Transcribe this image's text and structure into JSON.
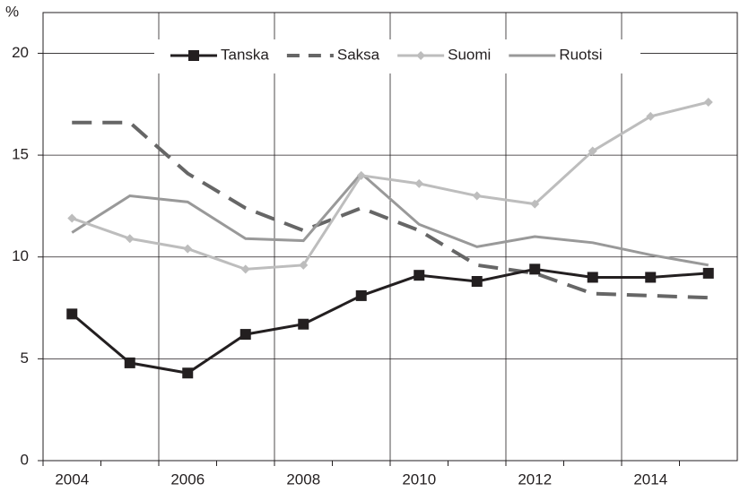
{
  "chart_data": {
    "type": "line",
    "y_axis_label": "%",
    "categories": [
      "2004",
      null,
      "2006",
      null,
      "2008",
      null,
      "2010",
      null,
      "2012",
      null,
      "2014",
      null
    ],
    "ylim": [
      0,
      22
    ],
    "yticks": [
      0,
      5,
      10,
      15,
      20
    ],
    "grid": true,
    "legend": "top",
    "series": [
      {
        "name": "Tanska",
        "color": "#231f20",
        "marker": "square",
        "dash": false,
        "values": [
          7.2,
          4.8,
          4.3,
          6.2,
          6.7,
          8.1,
          9.1,
          8.8,
          9.4,
          9.0,
          9.0,
          9.2
        ]
      },
      {
        "name": "Saksa",
        "color": "#666666",
        "marker": "none",
        "dash": true,
        "values": [
          16.6,
          16.6,
          14.1,
          12.4,
          11.3,
          12.4,
          11.3,
          9.6,
          9.2,
          8.2,
          8.1,
          8.0
        ]
      },
      {
        "name": "Suomi",
        "color": "#bdbdbd",
        "marker": "diamond",
        "dash": false,
        "values": [
          11.9,
          10.9,
          10.4,
          9.4,
          9.6,
          14.0,
          13.6,
          13.0,
          12.6,
          15.2,
          16.9,
          17.6
        ]
      },
      {
        "name": "Ruotsi",
        "color": "#999999",
        "marker": "none",
        "dash": false,
        "values": [
          11.2,
          13.0,
          12.7,
          10.9,
          10.8,
          14.1,
          11.6,
          10.5,
          11.0,
          10.7,
          10.1,
          9.6
        ]
      }
    ]
  }
}
